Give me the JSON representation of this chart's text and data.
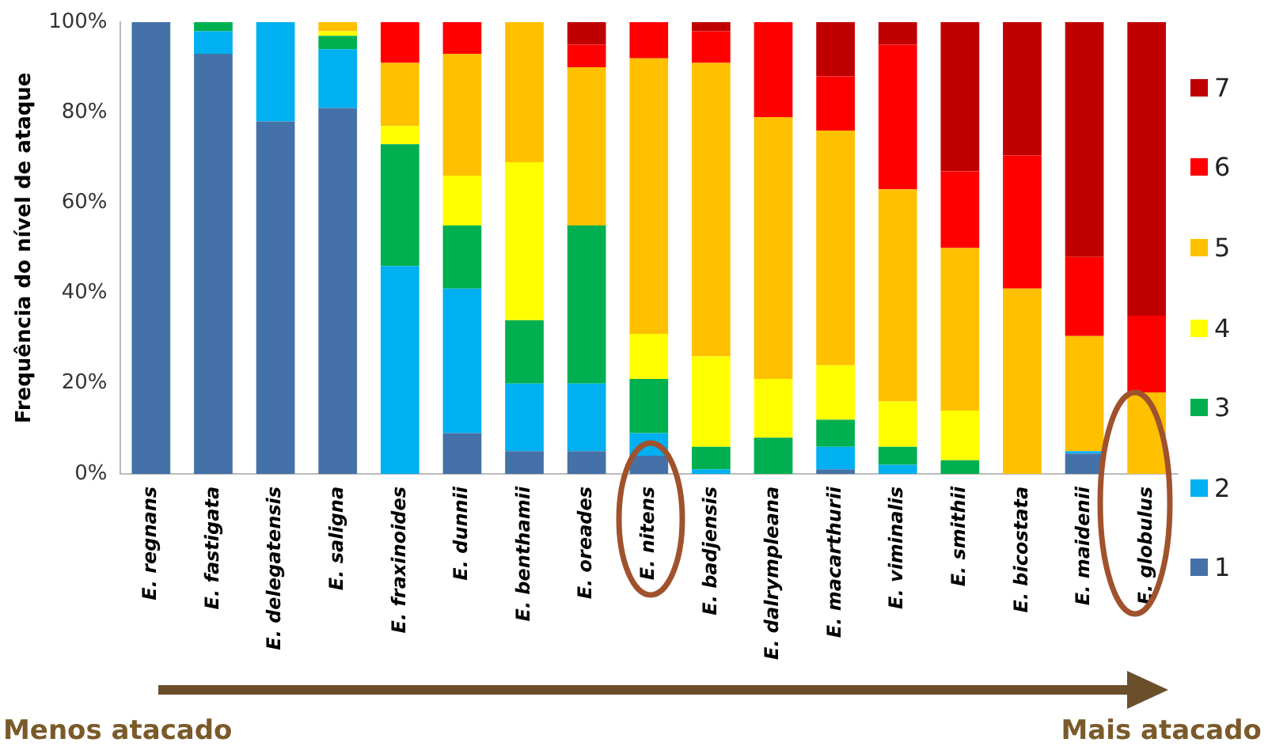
{
  "chart_data": {
    "type": "bar",
    "stacked": true,
    "ylabel": "Frequência do nível de ataque",
    "categories": [
      "E. regnans",
      "E. fastigata",
      "E. delegatensis",
      "E. saligna",
      "E. fraxinoides",
      "E. dunnii",
      "E. benthamii",
      "E. oreades",
      "E. nitens",
      "E. badjensis",
      "E. dalrympleana",
      "E. macarthurii",
      "E. viminalis",
      "E. smithii",
      "E. bicostata",
      "E. maidenii",
      "E. globulus"
    ],
    "series": [
      {
        "name": "1",
        "color": "#4472a8",
        "values": [
          100,
          93,
          78,
          81,
          0,
          9,
          5,
          5,
          4,
          0,
          0,
          1,
          0,
          0,
          0,
          4.5,
          0
        ]
      },
      {
        "name": "2",
        "color": "#00b0f0",
        "values": [
          0,
          5,
          22,
          13,
          46,
          32,
          15,
          15,
          5,
          1,
          0,
          5,
          2,
          0,
          0,
          0.5,
          0
        ]
      },
      {
        "name": "3",
        "color": "#00b050",
        "values": [
          0,
          2,
          0,
          3,
          27,
          14,
          14,
          35,
          12,
          5,
          8,
          6,
          4,
          3,
          0,
          0,
          0
        ]
      },
      {
        "name": "4",
        "color": "#ffff00",
        "values": [
          0,
          0,
          0,
          1,
          4,
          11,
          35,
          0,
          10,
          20,
          13,
          12,
          10,
          11,
          0,
          0,
          0
        ]
      },
      {
        "name": "5",
        "color": "#ffc000",
        "values": [
          0,
          0,
          0,
          2,
          14,
          27,
          31,
          35,
          61,
          65,
          58,
          52,
          47,
          36,
          41,
          25.5,
          18
        ]
      },
      {
        "name": "6",
        "color": "#ff0000",
        "values": [
          0,
          0,
          0,
          0,
          9,
          7,
          0,
          5,
          8,
          7,
          21,
          12,
          32,
          17,
          29.5,
          17.5,
          17
        ]
      },
      {
        "name": "7",
        "color": "#c00000",
        "values": [
          0,
          0,
          0,
          0,
          0,
          0,
          0,
          5,
          0,
          2,
          0,
          12,
          5,
          33,
          29.5,
          52,
          65
        ]
      }
    ],
    "ylim": [
      0,
      100
    ],
    "yticks": [
      {
        "value": 0,
        "label": "0%"
      },
      {
        "value": 20,
        "label": "20%"
      },
      {
        "value": 40,
        "label": "40%"
      },
      {
        "value": 60,
        "label": "60%"
      },
      {
        "value": 80,
        "label": "80%"
      },
      {
        "value": 100,
        "label": "100%"
      }
    ],
    "grid": false,
    "legend": "right",
    "annotations": [
      "Menos atacado",
      "Mais atacado"
    ]
  }
}
